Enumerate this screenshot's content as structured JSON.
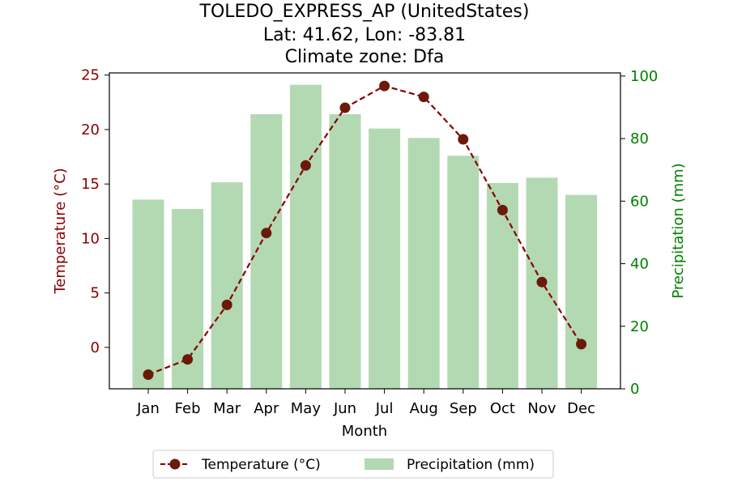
{
  "chart_data": {
    "type": "bar+line",
    "title": {
      "line1": "TOLEDO_EXPRESS_AP (UnitedStates)",
      "line2": "Lat: 41.62, Lon: -83.81",
      "line3": "Climate zone: Dfa"
    },
    "categories": [
      "Jan",
      "Feb",
      "Mar",
      "Apr",
      "May",
      "Jun",
      "Jul",
      "Aug",
      "Sep",
      "Oct",
      "Nov",
      "Dec"
    ],
    "xlabel": "Month",
    "ylabel_left": "Temperature (°C)",
    "ylabel_right": "Precipitation (mm)",
    "ylim_left": [
      -3.8,
      25.2
    ],
    "ylim_right": [
      0,
      101
    ],
    "yticks_left": [
      0,
      5,
      10,
      15,
      20,
      25
    ],
    "yticks_right": [
      0,
      20,
      40,
      60,
      80,
      100
    ],
    "series": [
      {
        "name": "Temperature (°C)",
        "kind": "line",
        "axis": "left",
        "values": [
          -2.5,
          -1.1,
          3.9,
          10.5,
          16.7,
          22.0,
          24.0,
          23.0,
          19.1,
          12.6,
          6.0,
          0.3
        ]
      },
      {
        "name": "Precipitation (mm)",
        "kind": "bar",
        "axis": "right",
        "values": [
          60.5,
          57.5,
          66.0,
          87.8,
          97.2,
          87.8,
          83.2,
          80.2,
          74.5,
          65.8,
          67.5,
          62.0
        ]
      }
    ],
    "legend": {
      "position": "bottom-center",
      "temp_label": "Temperature (°C)",
      "precip_label": "Precipitation (mm)"
    },
    "colors": {
      "temperature_line": "#8b0000",
      "temperature_marker": "#6b1a0a",
      "precipitation_bar": "#b3d9b3",
      "left_axis": "#8b0000",
      "right_axis": "#008000"
    },
    "grid": false
  }
}
